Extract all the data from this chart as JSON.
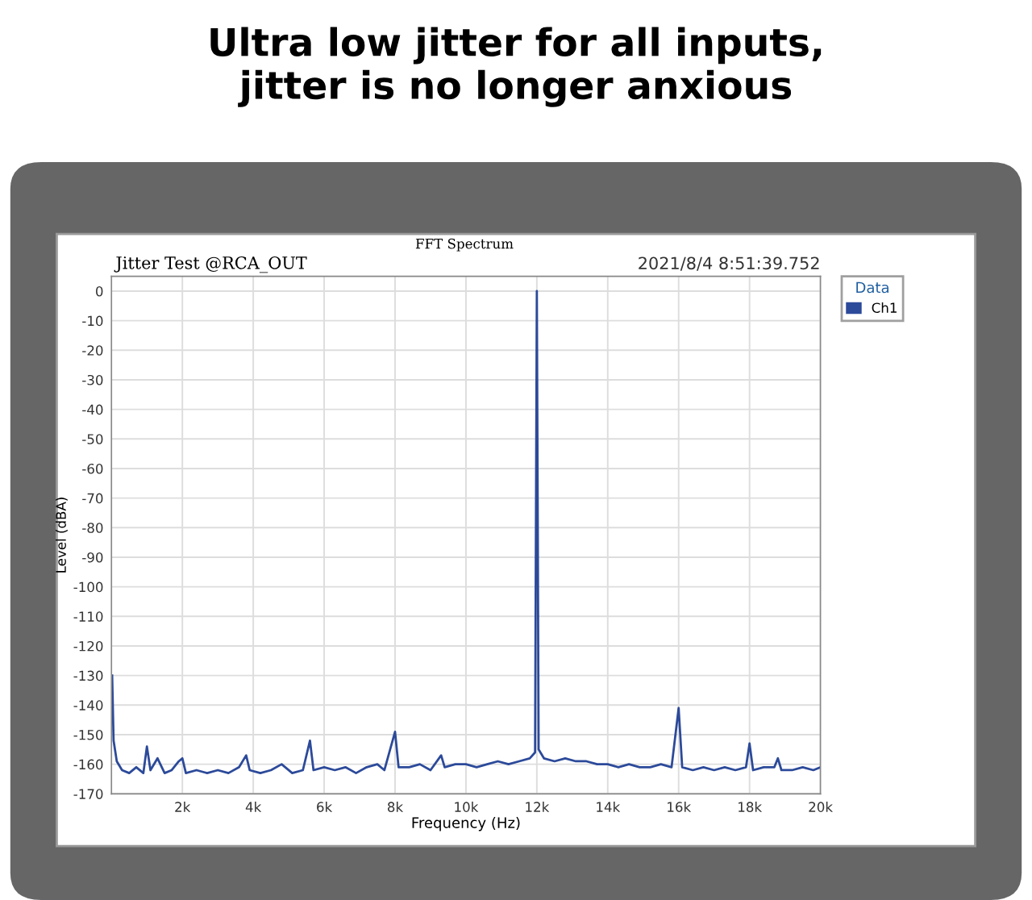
{
  "chart_data": {
    "type": "line",
    "title": "Ultra low jitter for all inputs,\njitter is no longer anxious",
    "subtitle": "FFT Spectrum",
    "annotations": [
      "Jitter Test @RCA_OUT",
      "2021/8/4 8:51:39.752"
    ],
    "xlabel": "Frequency (Hz)",
    "ylabel": "Level (dBA)",
    "legend_title": "Data",
    "x": [
      20,
      60,
      150,
      300,
      500,
      700,
      900,
      1000,
      1100,
      1300,
      1500,
      1700,
      1900,
      2000,
      2100,
      2400,
      2700,
      3000,
      3300,
      3600,
      3800,
      3900,
      4200,
      4500,
      4800,
      5100,
      5400,
      5600,
      5700,
      6000,
      6300,
      6600,
      6900,
      7200,
      7500,
      7700,
      8000,
      8100,
      8400,
      8700,
      9000,
      9300,
      9400,
      9700,
      10000,
      10300,
      10600,
      10900,
      11200,
      11500,
      11800,
      11950,
      12000,
      12050,
      12200,
      12500,
      12800,
      13100,
      13400,
      13700,
      14000,
      14300,
      14600,
      14900,
      15200,
      15500,
      15800,
      16000,
      16100,
      16400,
      16700,
      17000,
      17300,
      17600,
      17900,
      18000,
      18100,
      18400,
      18700,
      18800,
      18900,
      19200,
      19500,
      19800,
      20000
    ],
    "series": [
      {
        "name": "Ch1",
        "color": "#2c4a9a",
        "values": [
          -130,
          -152,
          -159,
          -162,
          -163,
          -161,
          -163,
          -154,
          -162,
          -158,
          -163,
          -162,
          -159,
          -158,
          -163,
          -162,
          -163,
          -162,
          -163,
          -161,
          -157,
          -162,
          -163,
          -162,
          -160,
          -163,
          -162,
          -152,
          -162,
          -161,
          -162,
          -161,
          -163,
          -161,
          -160,
          -162,
          -149,
          -161,
          -161,
          -160,
          -162,
          -157,
          -161,
          -160,
          -160,
          -161,
          -160,
          -159,
          -160,
          -159,
          -158,
          -156,
          0,
          -155,
          -158,
          -159,
          -158,
          -159,
          -159,
          -160,
          -160,
          -161,
          -160,
          -161,
          -161,
          -160,
          -161,
          -141,
          -161,
          -162,
          -161,
          -162,
          -161,
          -162,
          -161,
          -153,
          -162,
          -161,
          -161,
          -158,
          -162,
          -162,
          -161,
          -162,
          -161
        ]
      }
    ],
    "xlim": [
      0,
      20000
    ],
    "ylim": [
      -170,
      5
    ],
    "xticks": [
      {
        "value": 2000,
        "label": "2k"
      },
      {
        "value": 4000,
        "label": "4k"
      },
      {
        "value": 6000,
        "label": "6k"
      },
      {
        "value": 8000,
        "label": "8k"
      },
      {
        "value": 10000,
        "label": "10k"
      },
      {
        "value": 12000,
        "label": "12k"
      },
      {
        "value": 14000,
        "label": "14k"
      },
      {
        "value": 16000,
        "label": "16k"
      },
      {
        "value": 18000,
        "label": "18k"
      },
      {
        "value": 20000,
        "label": "20k"
      }
    ],
    "yticks": [
      -170,
      -160,
      -150,
      -140,
      -130,
      -120,
      -110,
      -100,
      -90,
      -80,
      -70,
      -60,
      -50,
      -40,
      -30,
      -20,
      -10,
      0
    ],
    "grid": true,
    "legend": "top right"
  }
}
